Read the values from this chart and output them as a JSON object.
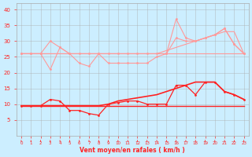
{
  "x": [
    0,
    1,
    2,
    3,
    4,
    5,
    6,
    7,
    8,
    9,
    10,
    11,
    12,
    13,
    14,
    15,
    16,
    17,
    18,
    19,
    20,
    21,
    22,
    23
  ],
  "wind_avg_line": [
    26,
    26,
    26,
    26,
    26,
    26,
    26,
    26,
    26,
    26,
    26,
    26,
    26,
    26,
    26,
    26,
    26,
    26,
    26,
    26,
    26,
    26,
    26,
    26
  ],
  "wind_gust_line": [
    26,
    26,
    26,
    26,
    26,
    26,
    26,
    26,
    26,
    26,
    26,
    26,
    26,
    26,
    26,
    27,
    28,
    29,
    30,
    31,
    32,
    33,
    33,
    26
  ],
  "wind_avg_pts": [
    26,
    26,
    26,
    21,
    28,
    26,
    23,
    22,
    26,
    23,
    23,
    23,
    23,
    23,
    25,
    26,
    31,
    30,
    30,
    31,
    32,
    34,
    29,
    26
  ],
  "wind_gust_pts": [
    26,
    26,
    26,
    30,
    28,
    26,
    26,
    26,
    26,
    26,
    26,
    26,
    26,
    26,
    26,
    26,
    37,
    31,
    30,
    31,
    32,
    34,
    29,
    26
  ],
  "wind_speed_line1": [
    9.5,
    9.5,
    9.5,
    9.5,
    9.5,
    9.5,
    9.5,
    9.5,
    9.5,
    9.5,
    9.5,
    9.5,
    9.5,
    9.5,
    9.5,
    9.5,
    9.5,
    9.5,
    9.5,
    9.5,
    9.5,
    9.5,
    9.5,
    9.5
  ],
  "wind_speed_line2": [
    9.5,
    9.5,
    9.5,
    9.5,
    9.5,
    9.5,
    9.5,
    9.5,
    9.5,
    10,
    11,
    11.5,
    12,
    12.5,
    13,
    14,
    15,
    16,
    17,
    17,
    17,
    14,
    13,
    11.5
  ],
  "wind_speed_pts": [
    9.5,
    9.5,
    9.5,
    11.5,
    11,
    8,
    8,
    7,
    6.5,
    10,
    10.5,
    11,
    11,
    10,
    10,
    10,
    16,
    16,
    13,
    17,
    17,
    14,
    13,
    11.5
  ],
  "ylim": [
    0,
    42
  ],
  "yticks": [
    5,
    10,
    15,
    20,
    25,
    30,
    35,
    40
  ],
  "background_color": "#cceeff",
  "grid_color": "#aaaaaa",
  "line_color_light": "#ff9999",
  "line_color_dark": "#ff2222",
  "xlabel": "Vent moyen/en rafales ( km/h )",
  "xlabel_color": "#ff2222"
}
